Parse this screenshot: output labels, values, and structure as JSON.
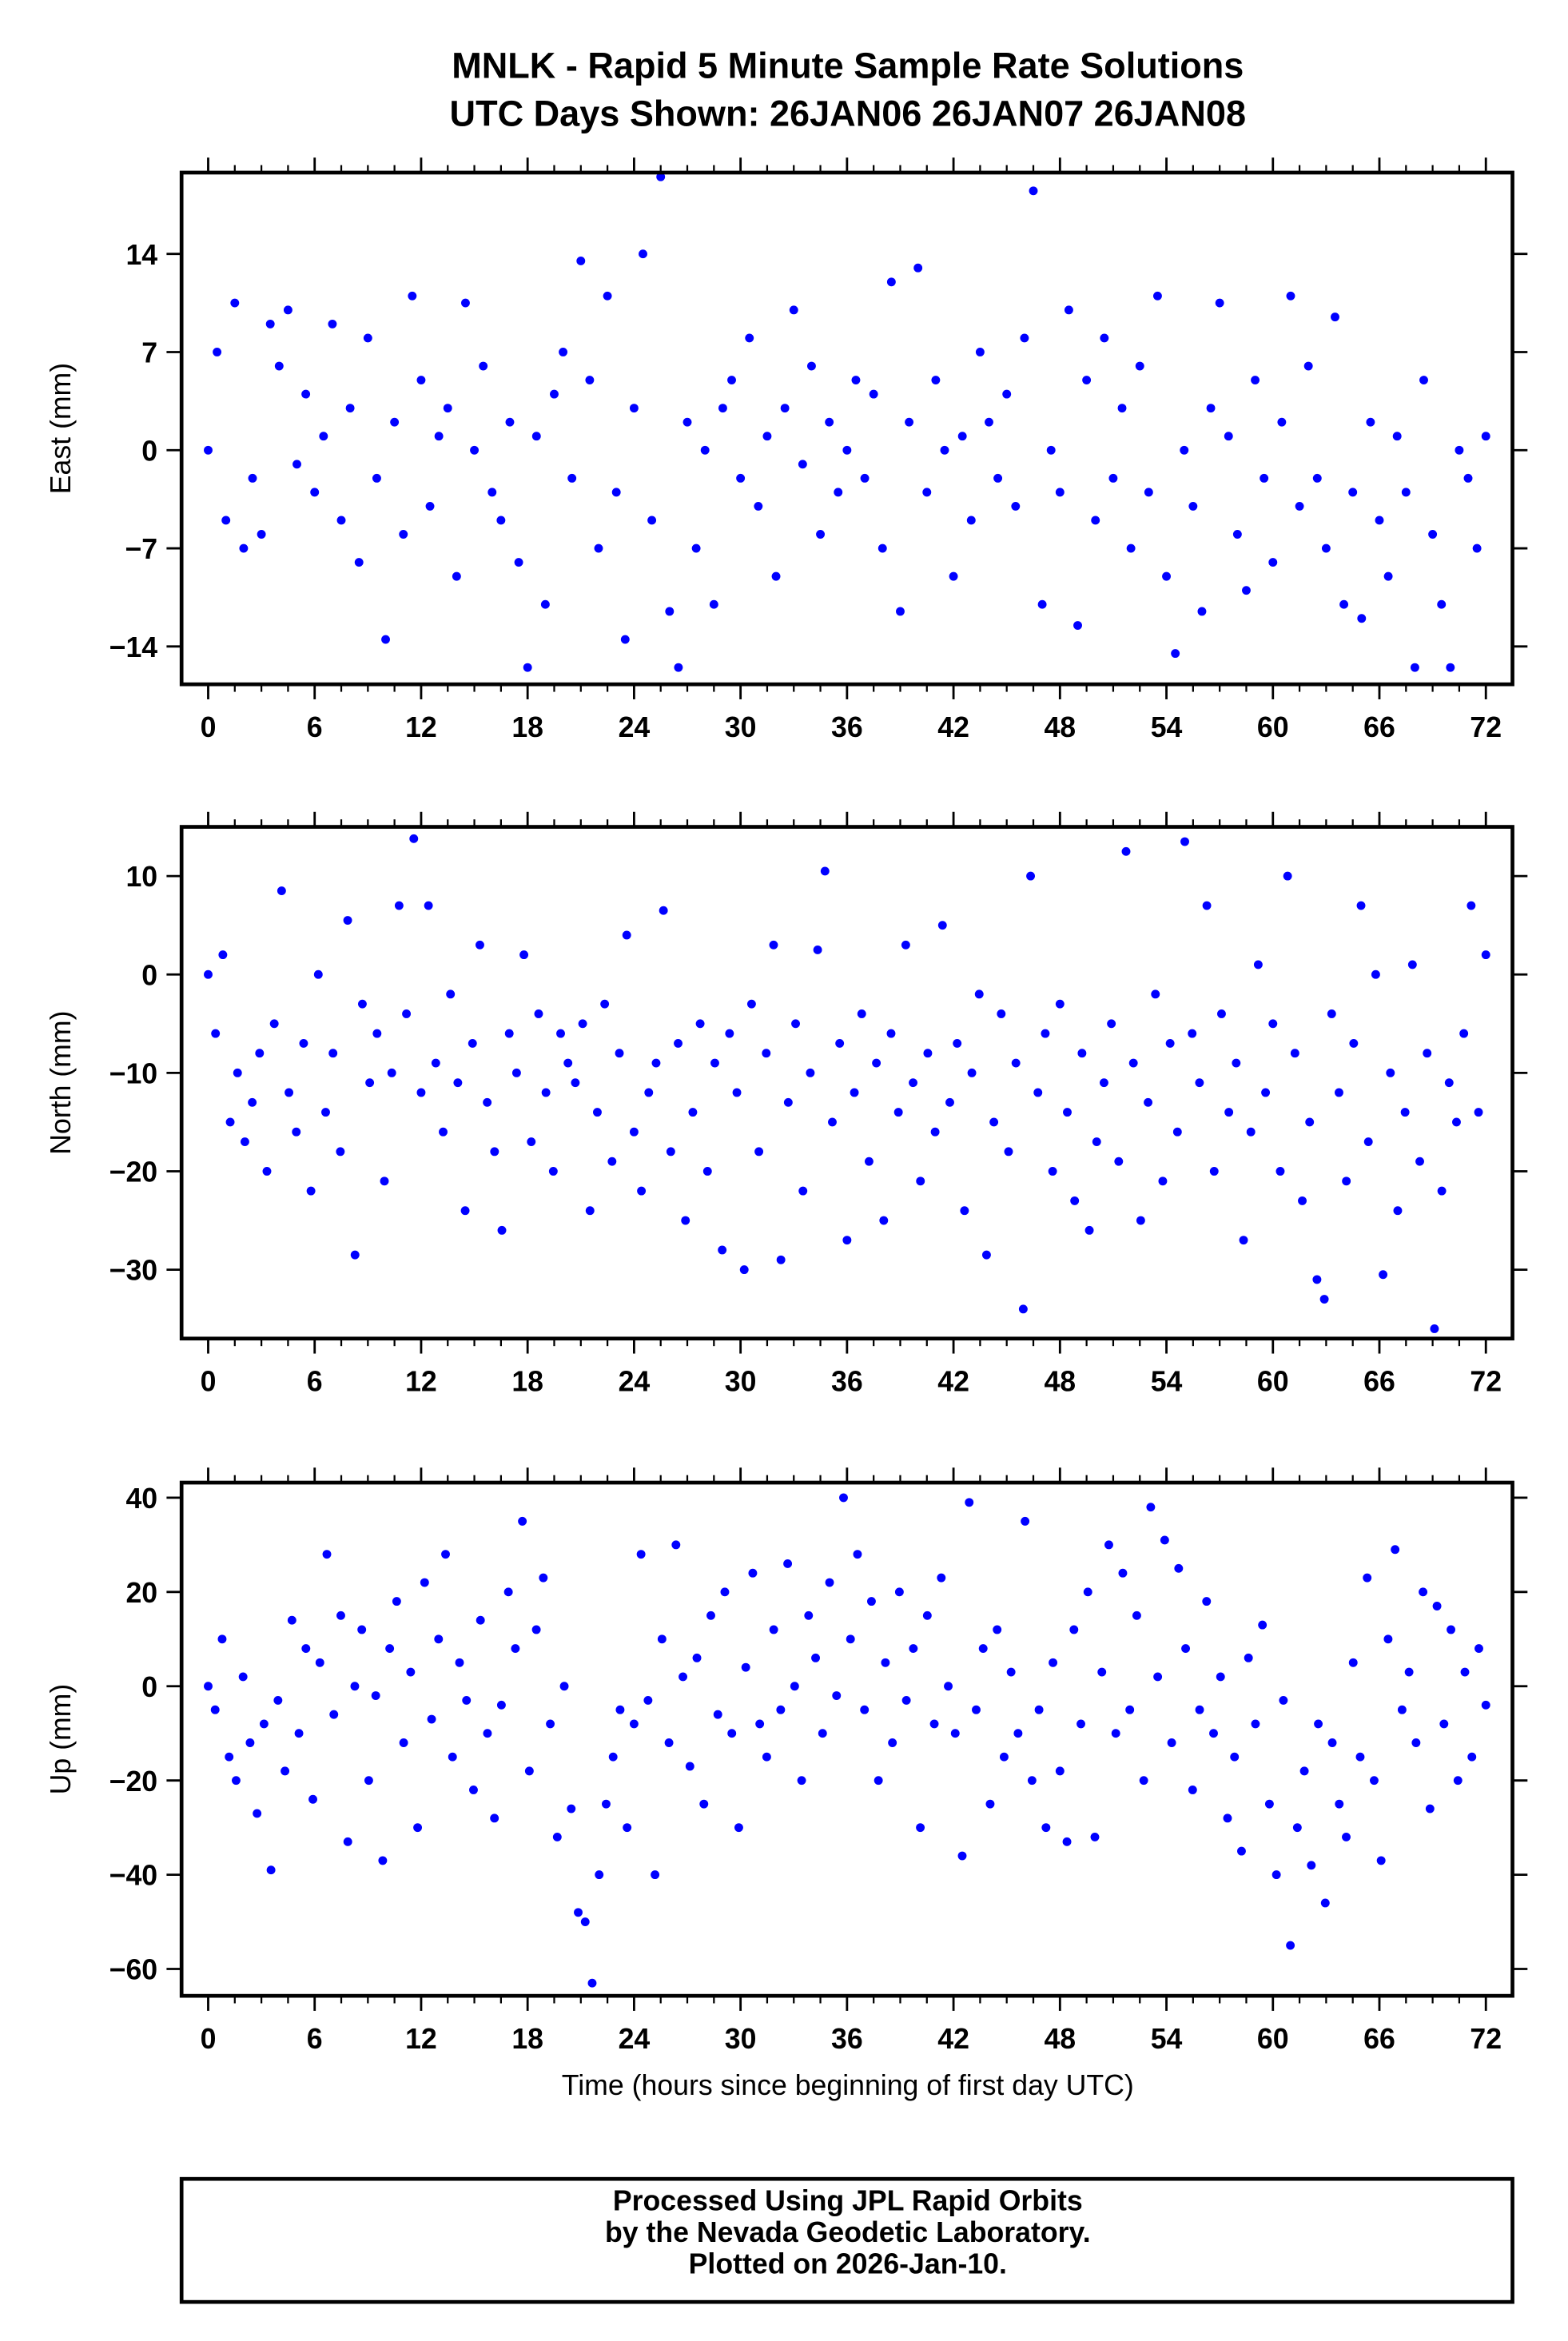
{
  "title_line1": "MNLK - Rapid 5 Minute Sample Rate Solutions",
  "title_line2": "UTC Days Shown:  26JAN06 26JAN07 26JAN08",
  "xlabel": "Time (hours since beginning of first day UTC)",
  "footer": [
    "Processed Using JPL Rapid Orbits",
    "by the Nevada Geodetic Laboratory.",
    "Plotted on 2026-Jan-10."
  ],
  "colors": {
    "points": "#0000ff",
    "frame": "#000000"
  },
  "chart_data": [
    {
      "type": "scatter",
      "ylabel": "East (mm)",
      "xlim": [
        -1.5,
        73.5
      ],
      "ylim": [
        -16.7,
        19.8
      ],
      "xticks": [
        0,
        6,
        12,
        18,
        24,
        30,
        36,
        42,
        48,
        54,
        60,
        66,
        72
      ],
      "xtick_labels": [
        "0",
        "6",
        "12",
        "18",
        "24",
        "30",
        "36",
        "42",
        "48",
        "54",
        "60",
        "66",
        "72"
      ],
      "yticks": [
        -14,
        -7,
        0,
        7,
        14
      ],
      "ytick_labels": [
        "−14",
        "−7",
        "0",
        "7",
        "14"
      ],
      "x_range": [
        0,
        72
      ],
      "y": [
        0,
        7,
        -5,
        10.5,
        -7,
        -2,
        -6,
        9,
        6,
        10,
        -1,
        4,
        -3,
        1,
        9,
        -5,
        3,
        -8,
        8,
        -2,
        -13.5,
        2,
        -6,
        11,
        5,
        -4,
        1,
        3,
        -9,
        10.5,
        0,
        6,
        -3,
        -5,
        2,
        -8,
        -15.5,
        1,
        -11,
        4,
        7,
        -2,
        13.5,
        5,
        -7,
        11,
        -3,
        -13.5,
        3,
        14,
        -5,
        19.5,
        -11.5,
        -15.5,
        2,
        -7,
        0,
        -11,
        3,
        5,
        -2,
        8,
        -4,
        1,
        -9,
        3,
        10,
        -1,
        6,
        -6,
        2,
        -3,
        0,
        5,
        -2,
        4,
        -7,
        12,
        -11.5,
        2,
        13,
        -3,
        5,
        0,
        -9,
        1,
        -5,
        7,
        2,
        -2,
        4,
        -4,
        8,
        18.5,
        -11,
        0,
        -3,
        10,
        -12.5,
        5,
        -5,
        8,
        -2,
        3,
        -7,
        6,
        -3,
        11,
        -9,
        -14.5,
        0,
        -4,
        -11.5,
        3,
        10.5,
        1,
        -6,
        -10,
        5,
        -2,
        -8,
        2,
        11,
        -4,
        6,
        -2,
        -7,
        9.5,
        -11,
        -3,
        -12,
        2,
        -5,
        -9,
        1,
        -3,
        -15.5,
        5,
        -6,
        -11,
        -15.5,
        0,
        -2,
        -7,
        1
      ]
    },
    {
      "type": "scatter",
      "ylabel": "North (mm)",
      "xlim": [
        -1.5,
        73.5
      ],
      "ylim": [
        -37,
        15
      ],
      "xticks": [
        0,
        6,
        12,
        18,
        24,
        30,
        36,
        42,
        48,
        54,
        60,
        66,
        72
      ],
      "xtick_labels": [
        "0",
        "6",
        "12",
        "18",
        "24",
        "30",
        "36",
        "42",
        "48",
        "54",
        "60",
        "66",
        "72"
      ],
      "yticks": [
        -30,
        -20,
        -10,
        0,
        10
      ],
      "ytick_labels": [
        "−30",
        "−20",
        "−10",
        "0",
        "10"
      ],
      "x_range": [
        0,
        72
      ],
      "y": [
        0,
        -6,
        2,
        -15,
        -10,
        -17,
        -13,
        -8,
        -20,
        -5,
        8.5,
        -12,
        -16,
        -7,
        -22,
        0,
        -14,
        -8,
        -18,
        5.5,
        -28.5,
        -3,
        -11,
        -6,
        -21,
        -10,
        7,
        -4,
        13.8,
        -12,
        7,
        -9,
        -16,
        -2,
        -11,
        -24,
        -7,
        3,
        -13,
        -18,
        -26,
        -6,
        -10,
        2,
        -17,
        -4,
        -12,
        -20,
        -6,
        -9,
        -11,
        -5,
        -24,
        -14,
        -3,
        -19,
        -8,
        4,
        -16,
        -22,
        -12,
        -9,
        6.5,
        -18,
        -7,
        -25,
        -14,
        -5,
        -20,
        -9,
        -28,
        -6,
        -12,
        -30,
        -3,
        -18,
        -8,
        3,
        -29,
        -13,
        -5,
        -22,
        -10,
        2.5,
        10.5,
        -15,
        -7,
        -27,
        -12,
        -4,
        -19,
        -9,
        -25,
        -6,
        -14,
        3,
        -11,
        -21,
        -8,
        -16,
        5,
        -13,
        -7,
        -24,
        -10,
        -2,
        -28.5,
        -15,
        -4,
        -18,
        -9,
        -34,
        10,
        -12,
        -6,
        -20,
        -3,
        -14,
        -23,
        -8,
        -26,
        -17,
        -11,
        -5,
        -19,
        12.5,
        -9,
        -25,
        -13,
        -2,
        -21,
        -7,
        -16,
        13.5,
        -6,
        -11,
        7,
        -20,
        -4,
        -14,
        -9,
        -27,
        -16,
        1,
        -12,
        -5,
        -20,
        10,
        -8,
        -23,
        -15,
        -31,
        -33,
        -4,
        -12,
        -21,
        -7,
        7,
        -17,
        0,
        -30.5,
        -10,
        -24,
        -14,
        1,
        -19,
        -8,
        -36,
        -22,
        -11,
        -15,
        -6,
        7,
        -14,
        2
      ]
    },
    {
      "type": "scatter",
      "ylabel": "Up (mm)",
      "xlim": [
        -1.5,
        73.5
      ],
      "ylim": [
        -65.7,
        43.2
      ],
      "xticks": [
        0,
        6,
        12,
        18,
        24,
        30,
        36,
        42,
        48,
        54,
        60,
        66,
        72
      ],
      "xtick_labels": [
        "0",
        "6",
        "12",
        "18",
        "24",
        "30",
        "36",
        "42",
        "48",
        "54",
        "60",
        "66",
        "72"
      ],
      "yticks": [
        -60,
        -40,
        -20,
        0,
        20,
        40
      ],
      "ytick_labels": [
        "−60",
        "−40",
        "−20",
        "0",
        "20",
        "40"
      ],
      "x_range": [
        0,
        72
      ],
      "y": [
        0,
        -5,
        10,
        -15,
        -20,
        2,
        -12,
        -27,
        -8,
        -39,
        -3,
        -18,
        14,
        -10,
        8,
        -24,
        5,
        28,
        -6,
        15,
        -33,
        0,
        12,
        -20,
        -2,
        -37,
        8,
        18,
        -12,
        3,
        -30,
        22,
        -7,
        10,
        28,
        -15,
        5,
        -3,
        -22,
        14,
        -10,
        -28,
        -4,
        20,
        8,
        35,
        -18,
        12,
        23,
        -8,
        -32,
        0,
        -26,
        -48,
        -50,
        -63,
        -40,
        -25,
        -15,
        -5,
        -30,
        -8,
        28,
        -3,
        -40,
        10,
        -12,
        30,
        2,
        -17,
        6,
        -25,
        15,
        -6,
        20,
        -10,
        -30,
        4,
        24,
        -8,
        -15,
        12,
        -5,
        26,
        0,
        -20,
        15,
        6,
        -10,
        22,
        -2,
        40,
        10,
        28,
        -5,
        18,
        -20,
        5,
        -12,
        20,
        -3,
        8,
        -30,
        15,
        -8,
        23,
        0,
        -10,
        -36,
        39,
        -5,
        8,
        -25,
        12,
        -15,
        3,
        -10,
        35,
        -20,
        -5,
        -30,
        5,
        -18,
        -33,
        12,
        -8,
        20,
        -32,
        3,
        30,
        -10,
        24,
        -5,
        15,
        -20,
        38,
        2,
        31,
        -12,
        25,
        8,
        -22,
        -5,
        18,
        -10,
        2,
        -28,
        -15,
        -35,
        6,
        -8,
        13,
        -25,
        -40,
        -3,
        -55,
        -30,
        -18,
        -38,
        -8,
        -46,
        -12,
        -25,
        -32,
        5,
        -15,
        23,
        -20,
        -37,
        10,
        29,
        -5,
        3,
        -12,
        20,
        -26,
        17,
        -8,
        12,
        -20,
        3,
        -15,
        8,
        -4
      ]
    }
  ]
}
